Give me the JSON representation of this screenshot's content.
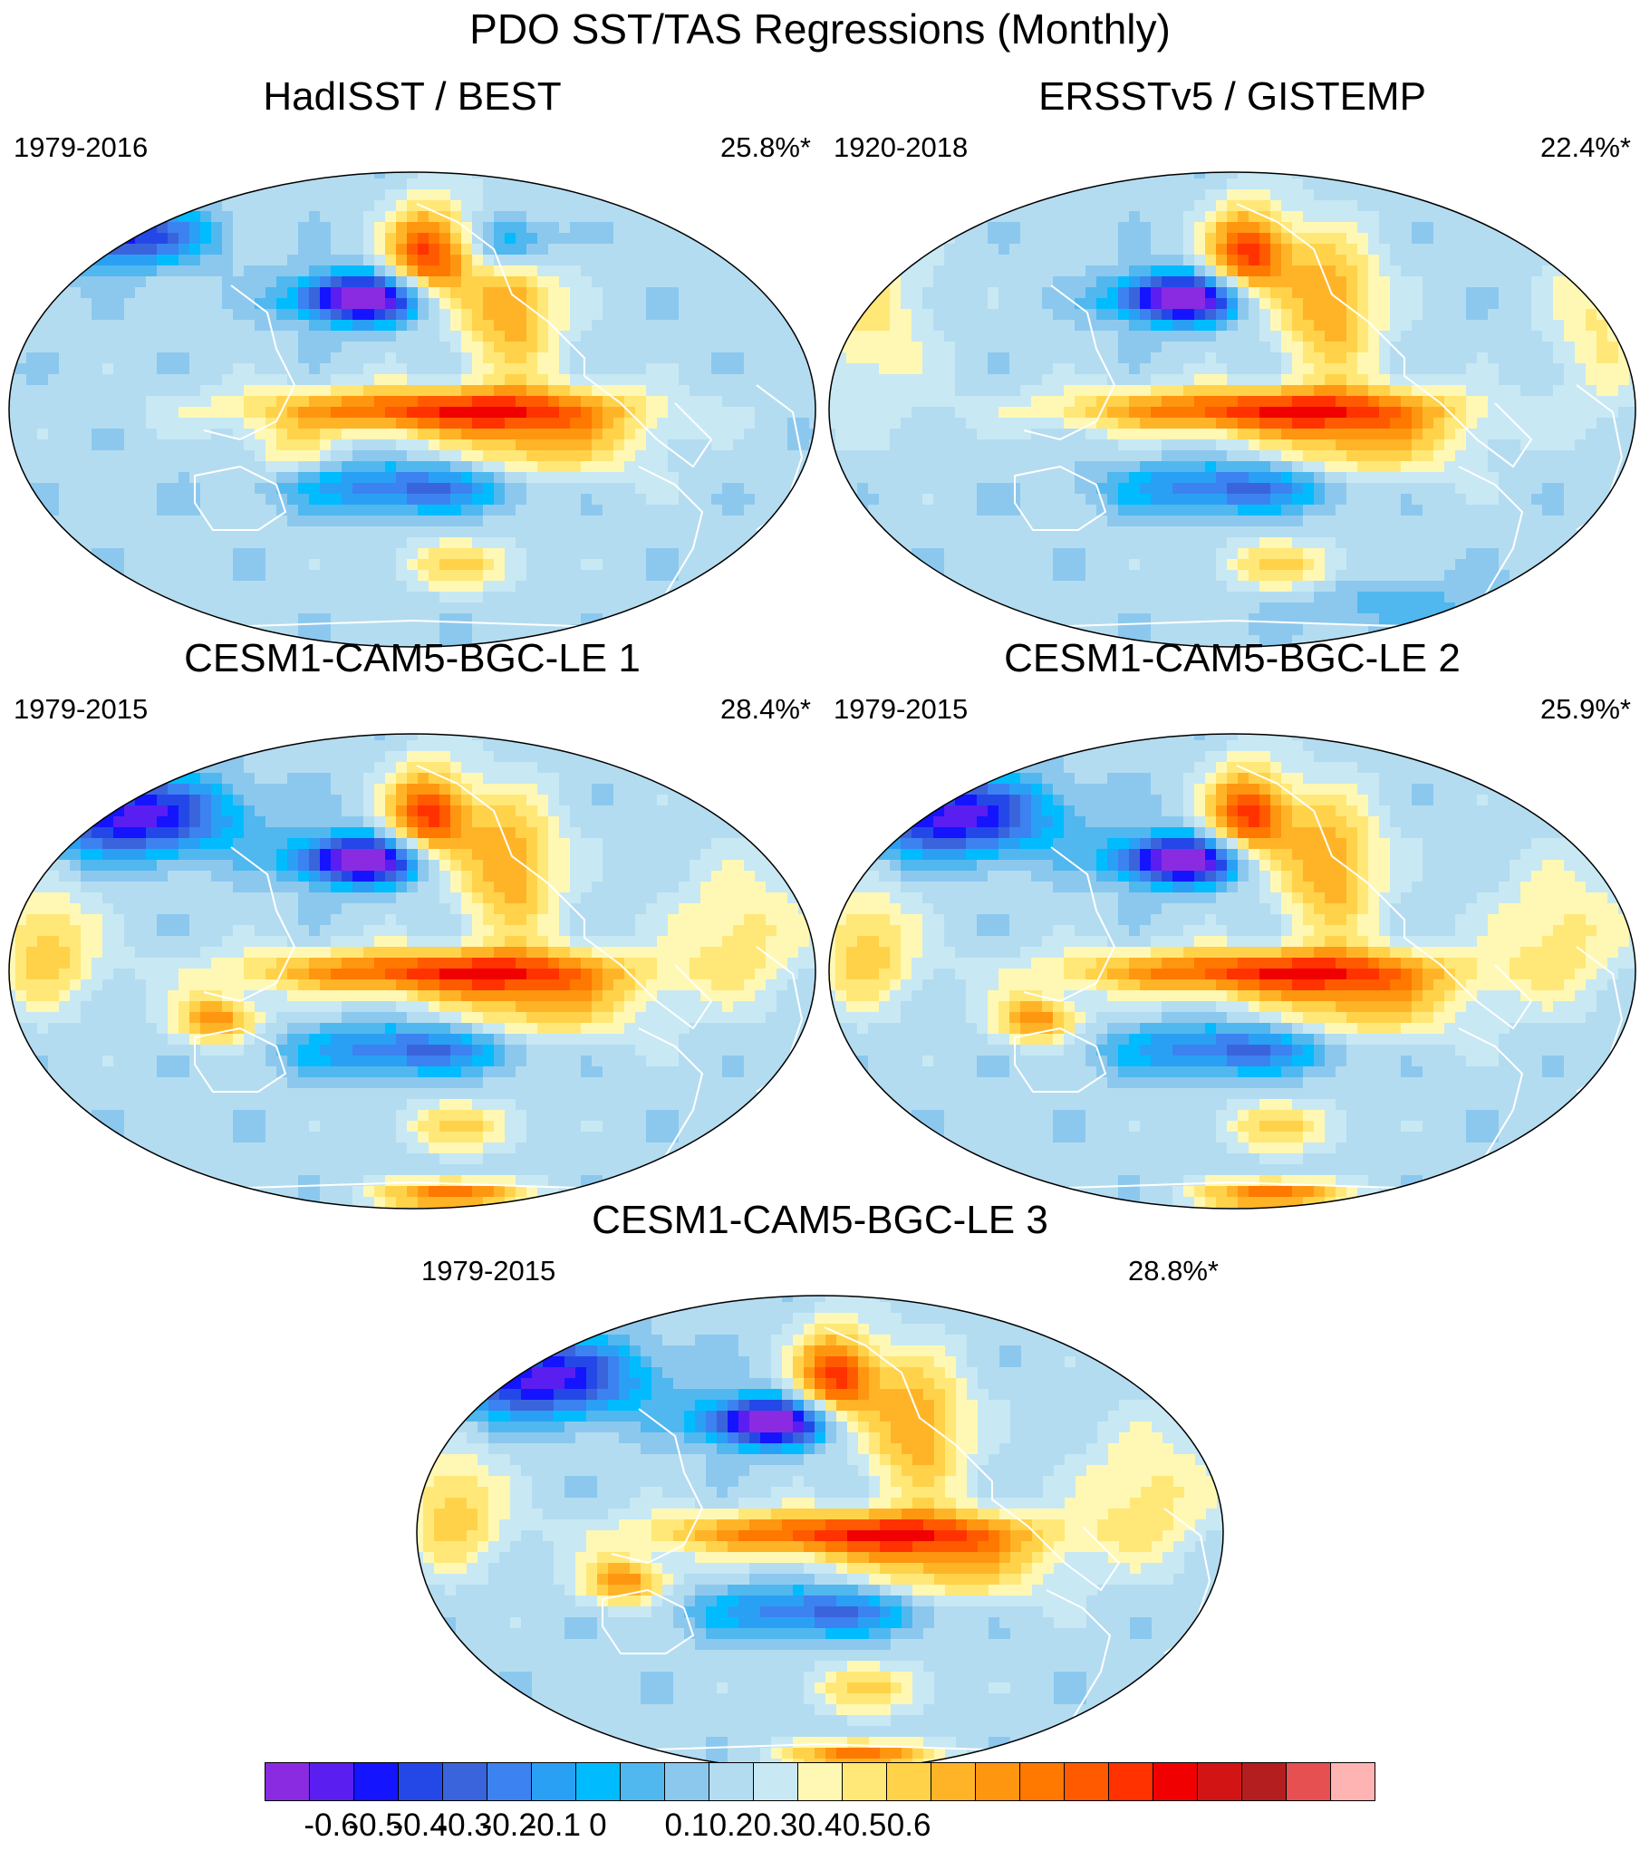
{
  "title": "PDO SST/TAS Regressions (Monthly)",
  "panels": [
    {
      "title": "HadISST / BEST",
      "period": "1979-2016",
      "variance": "25.8%*",
      "pattern": "obs1"
    },
    {
      "title": "ERSSTv5 / GISTEMP",
      "period": "1920-2018",
      "variance": "22.4%*",
      "pattern": "obs2"
    },
    {
      "title": "CESM1-CAM5-BGC-LE 1",
      "period": "1979-2015",
      "variance": "28.4%*",
      "pattern": "model"
    },
    {
      "title": "CESM1-CAM5-BGC-LE 2",
      "period": "1979-2015",
      "variance": "25.9%*",
      "pattern": "model"
    },
    {
      "title": "CESM1-CAM5-BGC-LE 3",
      "period": "1979-2015",
      "variance": "28.8%*",
      "pattern": "model"
    }
  ],
  "colorbar": {
    "colors": [
      "#8a2be2",
      "#5a1ef0",
      "#1414ff",
      "#2448e8",
      "#3a64dc",
      "#3c82f0",
      "#2aa0f5",
      "#00bcff",
      "#50b8ee",
      "#8cc8ee",
      "#b4dcf0",
      "#c8e8f4",
      "#fff8b4",
      "#ffe878",
      "#ffd24a",
      "#ffb428",
      "#ff9610",
      "#ff7800",
      "#ff5a00",
      "#ff3200",
      "#f00000",
      "#d21414",
      "#b41e1e",
      "#e65050",
      "#ffb4b4"
    ],
    "tick_labels": [
      "-0.6",
      "-0.5",
      "-0.4",
      "-0.3",
      "-0.2",
      "-0.1",
      "0",
      "0.1",
      "0.2",
      "0.3",
      "0.4",
      "0.5",
      "0.6"
    ],
    "tick_values": [
      -0.6,
      -0.5,
      -0.4,
      -0.3,
      -0.2,
      -0.1,
      0,
      0.1,
      0.2,
      0.3,
      0.4,
      0.5,
      0.6
    ]
  }
}
